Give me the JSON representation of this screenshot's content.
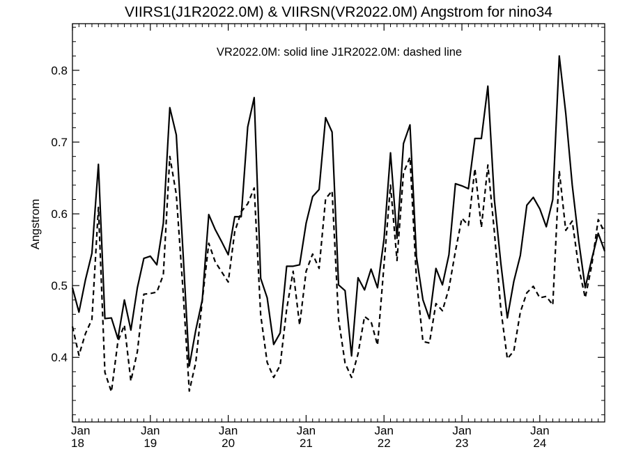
{
  "chart_data": {
    "type": "line",
    "title": "VIIRS1(J1R2022.0M) & VIIRSN(VR2022.0M)  Angstrom for nino34",
    "annotation": "VR2022.0M: solid line   J1R2022.0M: dashed line",
    "ylabel": "Angstrom",
    "xlabel": "",
    "ylim": [
      0.31,
      0.865
    ],
    "xlim": [
      "2018-01",
      "2024-11"
    ],
    "yticks": [
      0.4,
      0.5,
      0.6,
      0.7,
      0.8
    ],
    "ytick_labels": [
      "0.4",
      "0.5",
      "0.6",
      "0.7",
      "0.8"
    ],
    "xtick_labels": [
      {
        "month": "Jan",
        "year": "18"
      },
      {
        "month": "Jan",
        "year": "19"
      },
      {
        "month": "Jan",
        "year": "20"
      },
      {
        "month": "Jan",
        "year": "21"
      },
      {
        "month": "Jan",
        "year": "22"
      },
      {
        "month": "Jan",
        "year": "23"
      },
      {
        "month": "Jan",
        "year": "24"
      }
    ],
    "x": [
      "2018-01",
      "2018-02",
      "2018-03",
      "2018-04",
      "2018-05",
      "2018-06",
      "2018-07",
      "2018-08",
      "2018-09",
      "2018-10",
      "2018-11",
      "2018-12",
      "2019-01",
      "2019-02",
      "2019-03",
      "2019-04",
      "2019-05",
      "2019-06",
      "2019-07",
      "2019-08",
      "2019-09",
      "2019-10",
      "2019-11",
      "2019-12",
      "2020-01",
      "2020-02",
      "2020-03",
      "2020-04",
      "2020-05",
      "2020-06",
      "2020-07",
      "2020-08",
      "2020-09",
      "2020-10",
      "2020-11",
      "2020-12",
      "2021-01",
      "2021-02",
      "2021-03",
      "2021-04",
      "2021-05",
      "2021-06",
      "2021-07",
      "2021-08",
      "2021-09",
      "2021-10",
      "2021-11",
      "2021-12",
      "2022-01",
      "2022-02",
      "2022-03",
      "2022-04",
      "2022-05",
      "2022-06",
      "2022-07",
      "2022-08",
      "2022-09",
      "2022-10",
      "2022-11",
      "2022-12",
      "2023-01",
      "2023-02",
      "2023-03",
      "2023-04",
      "2023-05",
      "2023-06",
      "2023-07",
      "2023-08",
      "2023-09",
      "2023-10",
      "2023-11",
      "2023-12",
      "2024-01",
      "2024-02",
      "2024-03",
      "2024-04",
      "2024-05",
      "2024-06",
      "2024-07",
      "2024-08",
      "2024-09",
      "2024-10",
      "2024-11"
    ],
    "series": [
      {
        "name": "VR2022.0M",
        "style": "solid",
        "values": [
          0.497,
          0.463,
          0.508,
          0.545,
          0.669,
          0.454,
          0.455,
          0.426,
          0.48,
          0.438,
          0.497,
          0.538,
          0.541,
          0.529,
          0.587,
          0.748,
          0.71,
          0.552,
          0.388,
          0.438,
          0.48,
          0.599,
          0.578,
          0.561,
          0.543,
          0.596,
          0.596,
          0.721,
          0.762,
          0.51,
          0.483,
          0.418,
          0.434,
          0.527,
          0.527,
          0.529,
          0.587,
          0.624,
          0.634,
          0.734,
          0.714,
          0.501,
          0.493,
          0.402,
          0.511,
          0.494,
          0.523,
          0.497,
          0.565,
          0.685,
          0.566,
          0.698,
          0.724,
          0.54,
          0.48,
          0.454,
          0.524,
          0.501,
          0.543,
          0.642,
          0.639,
          0.635,
          0.705,
          0.705,
          0.778,
          0.62,
          0.531,
          0.455,
          0.506,
          0.542,
          0.612,
          0.623,
          0.607,
          0.582,
          0.62,
          0.82,
          0.74,
          0.64,
          0.562,
          0.497,
          0.537,
          0.573,
          0.548
        ]
      },
      {
        "name": "J1R2022.0M",
        "style": "dashed",
        "values": [
          0.443,
          0.403,
          0.433,
          0.453,
          0.609,
          0.379,
          0.352,
          0.422,
          0.445,
          0.367,
          0.408,
          0.488,
          0.489,
          0.491,
          0.515,
          0.68,
          0.627,
          0.498,
          0.353,
          0.393,
          0.479,
          0.559,
          0.533,
          0.519,
          0.505,
          0.575,
          0.603,
          0.614,
          0.636,
          0.459,
          0.393,
          0.372,
          0.389,
          0.467,
          0.52,
          0.445,
          0.52,
          0.544,
          0.524,
          0.621,
          0.632,
          0.453,
          0.392,
          0.372,
          0.405,
          0.457,
          0.45,
          0.417,
          0.529,
          0.64,
          0.535,
          0.657,
          0.679,
          0.508,
          0.422,
          0.42,
          0.475,
          0.465,
          0.496,
          0.548,
          0.594,
          0.584,
          0.663,
          0.581,
          0.668,
          0.575,
          0.467,
          0.398,
          0.409,
          0.463,
          0.49,
          0.499,
          0.483,
          0.485,
          0.473,
          0.66,
          0.577,
          0.59,
          0.525,
          0.483,
          0.528,
          0.592,
          0.574
        ]
      }
    ],
    "grid": false,
    "legend": "none"
  }
}
